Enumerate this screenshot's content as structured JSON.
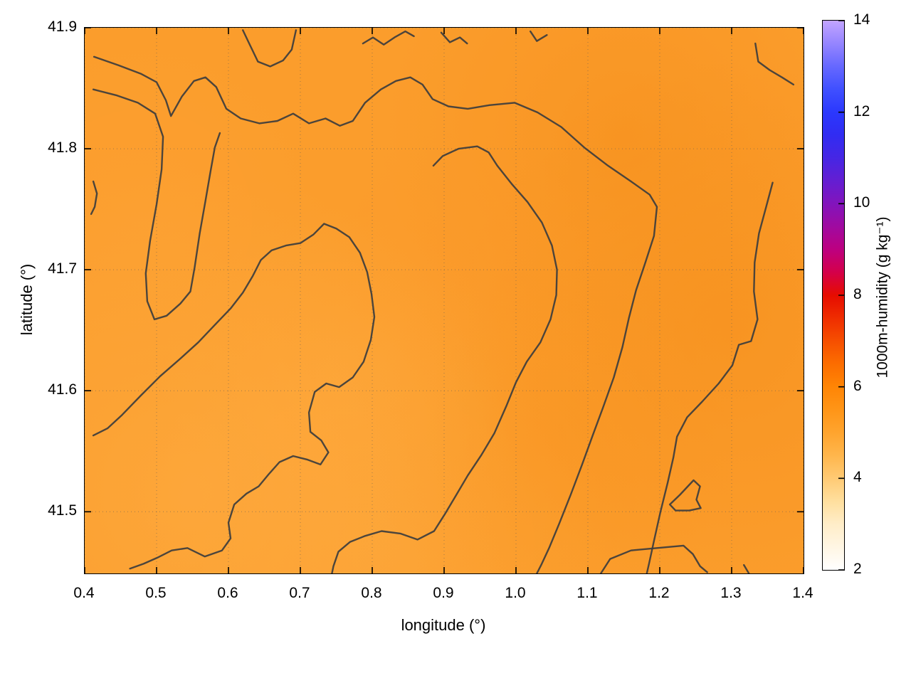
{
  "page": {
    "background": "#ffffff"
  },
  "chart_data": {
    "type": "contour-heatmap",
    "title": "",
    "xlabel": "longitude (°)",
    "ylabel": "latitude (°)",
    "xlim": [
      0.4,
      1.4
    ],
    "ylim": [
      41.449,
      41.9
    ],
    "grid": true,
    "x_ticks": [
      0.4,
      0.5,
      0.6,
      0.7,
      0.8,
      0.9,
      1.0,
      1.1,
      1.2,
      1.3,
      1.4
    ],
    "x_tick_labels": [
      "0.4",
      "0.5",
      "0.6",
      "0.7",
      "0.8",
      "0.9",
      "1.0",
      "1.1",
      "1.2",
      "1.3",
      "1.4"
    ],
    "y_ticks": [
      41.5,
      41.6,
      41.7,
      41.8,
      41.9
    ],
    "y_tick_labels": [
      "41.5",
      "41.6",
      "41.7",
      "41.8",
      "41.9"
    ],
    "colorbar": {
      "label": "1000m-humidity (g kg⁻¹)",
      "min": 2,
      "max": 14,
      "ticks": [
        2,
        4,
        6,
        8,
        10,
        12,
        14
      ],
      "tick_labels": [
        "2",
        "4",
        "6",
        "8",
        "10",
        "12",
        "14"
      ],
      "palette_stops": [
        [
          2,
          "#ffffff"
        ],
        [
          3,
          "#ffedc8"
        ],
        [
          3.5,
          "#ffdf9e"
        ],
        [
          4,
          "#ffca74"
        ],
        [
          4.5,
          "#ffb64c"
        ],
        [
          5,
          "#ffa42e"
        ],
        [
          5.5,
          "#ff9517"
        ],
        [
          6,
          "#ff8505"
        ],
        [
          6.5,
          "#fc6d00"
        ],
        [
          7,
          "#f64f00"
        ],
        [
          7.5,
          "#ef2d00"
        ],
        [
          8,
          "#e60c00"
        ],
        [
          8.5,
          "#d4004a"
        ],
        [
          9,
          "#bd0080"
        ],
        [
          9.5,
          "#a00aa0"
        ],
        [
          10,
          "#8214bc"
        ],
        [
          10.5,
          "#641ed2"
        ],
        [
          11,
          "#4626e4"
        ],
        [
          11.5,
          "#312cf2"
        ],
        [
          12,
          "#2b38fd"
        ],
        [
          12.5,
          "#4050ff"
        ],
        [
          13,
          "#6668ff"
        ],
        [
          13.5,
          "#9585ff"
        ],
        [
          14,
          "#c2a4ff"
        ]
      ]
    },
    "field": {
      "units": "g kg⁻¹",
      "approx_range": [
        4.9,
        5.7
      ],
      "base_color": "#fb9d2c",
      "patches": [
        {
          "x": 15,
          "y": 85,
          "r": 42,
          "rgba": "rgba(255,175,70,0.50)"
        },
        {
          "x": 35,
          "y": 65,
          "r": 30,
          "rgba": "rgba(255,168,60,0.40)"
        },
        {
          "x": 8,
          "y": 35,
          "r": 25,
          "rgba": "rgba(255,165,58,0.30)"
        },
        {
          "x": 52,
          "y": 42,
          "r": 26,
          "rgba": "rgba(250,150,40,0.35)"
        },
        {
          "x": 75,
          "y": 20,
          "r": 35,
          "rgba": "rgba(245,140,24,0.45)"
        },
        {
          "x": 90,
          "y": 55,
          "r": 38,
          "rgba": "rgba(244,138,22,0.45)"
        },
        {
          "x": 65,
          "y": 75,
          "r": 30,
          "rgba": "rgba(248,146,30,0.35)"
        },
        {
          "x": 40,
          "y": 95,
          "r": 35,
          "rgba": "rgba(255,172,66,0.40)"
        }
      ]
    },
    "contours": {
      "color": "#3d3d3d",
      "paths": [
        [
          [
            0.62,
            41.898
          ],
          [
            0.628,
            41.888
          ],
          [
            0.641,
            41.872
          ],
          [
            0.658,
            41.868
          ],
          [
            0.676,
            41.873
          ],
          [
            0.688,
            41.882
          ],
          [
            0.694,
            41.898
          ]
        ],
        [
          [
            0.787,
            41.887
          ],
          [
            0.801,
            41.892
          ],
          [
            0.816,
            41.886
          ],
          [
            0.831,
            41.892
          ],
          [
            0.846,
            41.897
          ],
          [
            0.858,
            41.893
          ]
        ],
        [
          [
            0.896,
            41.896
          ],
          [
            0.908,
            41.888
          ],
          [
            0.922,
            41.892
          ],
          [
            0.932,
            41.887
          ]
        ],
        [
          [
            1.02,
            41.897
          ],
          [
            1.029,
            41.889
          ],
          [
            1.043,
            41.894
          ]
        ],
        [
          [
            1.333,
            41.887
          ],
          [
            1.337,
            41.872
          ],
          [
            1.353,
            41.865
          ],
          [
            1.37,
            41.859
          ],
          [
            1.386,
            41.853
          ]
        ],
        [
          [
            0.412,
            41.773
          ],
          [
            0.417,
            41.763
          ],
          [
            0.414,
            41.752
          ],
          [
            0.409,
            41.746
          ]
        ],
        [
          [
            0.413,
            41.876
          ],
          [
            0.447,
            41.869
          ],
          [
            0.478,
            41.862
          ],
          [
            0.5,
            41.855
          ],
          [
            0.513,
            41.84
          ],
          [
            0.52,
            41.827
          ],
          [
            0.535,
            41.843
          ],
          [
            0.552,
            41.856
          ],
          [
            0.568,
            41.859
          ],
          [
            0.583,
            41.851
          ],
          [
            0.597,
            41.833
          ],
          [
            0.617,
            41.825
          ],
          [
            0.643,
            41.821
          ],
          [
            0.668,
            41.823
          ],
          [
            0.69,
            41.829
          ],
          [
            0.712,
            41.821
          ],
          [
            0.735,
            41.825
          ],
          [
            0.755,
            41.819
          ],
          [
            0.773,
            41.823
          ],
          [
            0.79,
            41.838
          ],
          [
            0.812,
            41.849
          ],
          [
            0.833,
            41.856
          ],
          [
            0.853,
            41.859
          ],
          [
            0.87,
            41.853
          ],
          [
            0.884,
            41.841
          ],
          [
            0.906,
            41.835
          ],
          [
            0.933,
            41.833
          ],
          [
            0.963,
            41.836
          ],
          [
            0.998,
            41.838
          ],
          [
            1.03,
            41.83
          ],
          [
            1.063,
            41.818
          ],
          [
            1.095,
            41.801
          ],
          [
            1.128,
            41.786
          ],
          [
            1.16,
            41.773
          ],
          [
            1.186,
            41.762
          ],
          [
            1.196,
            41.752
          ],
          [
            1.192,
            41.728
          ],
          [
            1.18,
            41.706
          ],
          [
            1.167,
            41.683
          ],
          [
            1.157,
            41.66
          ],
          [
            1.148,
            41.636
          ],
          [
            1.136,
            41.611
          ],
          [
            1.121,
            41.586
          ],
          [
            1.106,
            41.562
          ],
          [
            1.092,
            41.539
          ],
          [
            1.076,
            41.514
          ],
          [
            1.06,
            41.49
          ],
          [
            1.046,
            41.47
          ],
          [
            1.035,
            41.456
          ],
          [
            1.029,
            41.449
          ]
        ],
        [
          [
            0.885,
            41.786
          ],
          [
            0.898,
            41.794
          ],
          [
            0.92,
            41.8
          ],
          [
            0.946,
            41.802
          ],
          [
            0.962,
            41.797
          ],
          [
            0.974,
            41.786
          ],
          [
            0.994,
            41.771
          ],
          [
            1.016,
            41.756
          ],
          [
            1.036,
            41.739
          ],
          [
            1.05,
            41.72
          ],
          [
            1.057,
            41.7
          ],
          [
            1.056,
            41.679
          ],
          [
            1.048,
            41.659
          ],
          [
            1.034,
            41.64
          ],
          [
            1.015,
            41.624
          ],
          [
            1.0,
            41.607
          ],
          [
            0.987,
            41.588
          ],
          [
            0.97,
            41.565
          ],
          [
            0.952,
            41.547
          ],
          [
            0.933,
            41.53
          ],
          [
            0.917,
            41.514
          ],
          [
            0.901,
            41.498
          ],
          [
            0.886,
            41.484
          ],
          [
            0.863,
            41.477
          ],
          [
            0.839,
            41.482
          ],
          [
            0.813,
            41.484
          ],
          [
            0.79,
            41.48
          ],
          [
            0.769,
            41.475
          ],
          [
            0.753,
            41.467
          ],
          [
            0.746,
            41.455
          ],
          [
            0.744,
            41.449
          ]
        ],
        [
          [
            0.412,
            41.849
          ],
          [
            0.445,
            41.844
          ],
          [
            0.474,
            41.838
          ],
          [
            0.498,
            41.829
          ],
          [
            0.509,
            41.81
          ],
          [
            0.507,
            41.783
          ],
          [
            0.5,
            41.754
          ],
          [
            0.491,
            41.724
          ],
          [
            0.485,
            41.697
          ],
          [
            0.487,
            41.674
          ],
          [
            0.497,
            41.659
          ],
          [
            0.514,
            41.662
          ],
          [
            0.533,
            41.672
          ],
          [
            0.547,
            41.682
          ],
          [
            0.553,
            41.702
          ],
          [
            0.56,
            41.73
          ],
          [
            0.568,
            41.757
          ],
          [
            0.575,
            41.781
          ],
          [
            0.581,
            41.801
          ],
          [
            0.588,
            41.813
          ]
        ],
        [
          [
            0.412,
            41.563
          ],
          [
            0.432,
            41.569
          ],
          [
            0.452,
            41.58
          ],
          [
            0.478,
            41.596
          ],
          [
            0.505,
            41.612
          ],
          [
            0.532,
            41.626
          ],
          [
            0.558,
            41.64
          ],
          [
            0.582,
            41.655
          ],
          [
            0.603,
            41.668
          ],
          [
            0.62,
            41.681
          ],
          [
            0.634,
            41.695
          ],
          [
            0.645,
            41.708
          ],
          [
            0.66,
            41.716
          ],
          [
            0.68,
            41.72
          ],
          [
            0.7,
            41.722
          ],
          [
            0.718,
            41.729
          ],
          [
            0.733,
            41.738
          ],
          [
            0.75,
            41.734
          ],
          [
            0.768,
            41.727
          ],
          [
            0.783,
            41.714
          ],
          [
            0.793,
            41.698
          ],
          [
            0.799,
            41.68
          ],
          [
            0.803,
            41.661
          ],
          [
            0.798,
            41.642
          ],
          [
            0.788,
            41.624
          ],
          [
            0.773,
            41.611
          ],
          [
            0.754,
            41.603
          ],
          [
            0.736,
            41.606
          ],
          [
            0.72,
            41.599
          ],
          [
            0.712,
            41.582
          ],
          [
            0.714,
            41.566
          ],
          [
            0.729,
            41.559
          ],
          [
            0.739,
            41.549
          ],
          [
            0.728,
            41.539
          ],
          [
            0.71,
            41.543
          ],
          [
            0.69,
            41.546
          ],
          [
            0.671,
            41.541
          ],
          [
            0.656,
            41.531
          ],
          [
            0.642,
            41.521
          ],
          [
            0.625,
            41.515
          ],
          [
            0.608,
            41.506
          ],
          [
            0.6,
            41.491
          ],
          [
            0.603,
            41.478
          ],
          [
            0.591,
            41.468
          ],
          [
            0.567,
            41.463
          ],
          [
            0.543,
            41.47
          ],
          [
            0.521,
            41.468
          ],
          [
            0.501,
            41.462
          ],
          [
            0.482,
            41.457
          ],
          [
            0.463,
            41.453
          ]
        ],
        [
          [
            1.357,
            41.772
          ],
          [
            1.348,
            41.752
          ],
          [
            1.338,
            41.73
          ],
          [
            1.332,
            41.706
          ],
          [
            1.331,
            41.682
          ],
          [
            1.336,
            41.659
          ],
          [
            1.327,
            41.641
          ],
          [
            1.31,
            41.638
          ],
          [
            1.301,
            41.621
          ],
          [
            1.282,
            41.606
          ],
          [
            1.259,
            41.591
          ],
          [
            1.238,
            41.578
          ],
          [
            1.224,
            41.562
          ],
          [
            1.219,
            41.545
          ],
          [
            1.211,
            41.524
          ],
          [
            1.201,
            41.5
          ],
          [
            1.192,
            41.476
          ],
          [
            1.185,
            41.457
          ],
          [
            1.182,
            41.449
          ]
        ],
        [
          [
            1.214,
            41.506
          ],
          [
            1.228,
            41.514
          ],
          [
            1.247,
            41.526
          ],
          [
            1.256,
            41.521
          ],
          [
            1.251,
            41.51
          ],
          [
            1.257,
            41.503
          ],
          [
            1.241,
            41.501
          ],
          [
            1.222,
            41.501
          ],
          [
            1.214,
            41.506
          ]
        ],
        [
          [
            1.118,
            41.449
          ],
          [
            1.131,
            41.461
          ],
          [
            1.16,
            41.468
          ],
          [
            1.196,
            41.47
          ],
          [
            1.233,
            41.472
          ],
          [
            1.246,
            41.465
          ],
          [
            1.256,
            41.455
          ],
          [
            1.266,
            41.45
          ]
        ],
        [
          [
            1.317,
            41.456
          ],
          [
            1.324,
            41.449
          ]
        ]
      ]
    }
  }
}
